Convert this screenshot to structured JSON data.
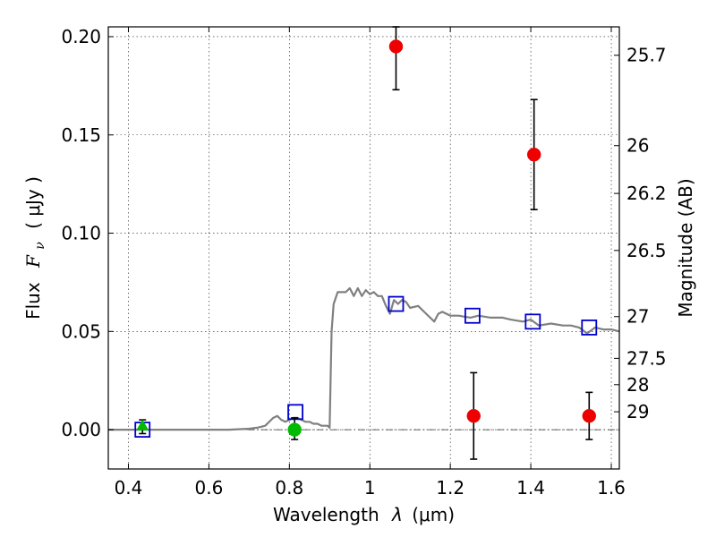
{
  "chart_data": {
    "type": "scatter",
    "title": "",
    "xlabel_prefix": "Wavelength",
    "xlabel_symbol": "λ",
    "xlabel_unit": "(μm)",
    "ylabel_prefix": "Flux",
    "ylabel_symbol": "F",
    "ylabel_subscript": "ν",
    "ylabel_unit": "( μJy )",
    "y2label": "Magnitude (AB)",
    "xlim": [
      0.35,
      1.62
    ],
    "ylim": [
      -0.02,
      0.205
    ],
    "grid": true,
    "x_ticks": [
      0.4,
      0.6,
      0.8,
      1.0,
      1.2,
      1.4,
      1.6
    ],
    "x_tick_labels": [
      "0.4",
      "0.6",
      "0.8",
      "1",
      "1.2",
      "1.4",
      "1.6"
    ],
    "y_ticks": [
      0.0,
      0.05,
      0.1,
      0.15,
      0.2
    ],
    "y_tick_labels": [
      "0.00",
      "0.05",
      "0.10",
      "0.15",
      "0.20"
    ],
    "y2_ticks": [
      25.7,
      26,
      26.2,
      26.5,
      27,
      27.5,
      28,
      29
    ],
    "y2_tick_labels": [
      "25.7",
      "26",
      "26.2",
      "26.5",
      "27",
      "27.5",
      "28",
      "29"
    ],
    "series": [
      {
        "kind": "line",
        "color": "#808080",
        "x": [
          0.35,
          0.4,
          0.45,
          0.5,
          0.55,
          0.6,
          0.65,
          0.7,
          0.72,
          0.74,
          0.76,
          0.77,
          0.78,
          0.79,
          0.8,
          0.81,
          0.82,
          0.83,
          0.84,
          0.85,
          0.86,
          0.87,
          0.88,
          0.89,
          0.895,
          0.9,
          0.905,
          0.91,
          0.92,
          0.93,
          0.94,
          0.95,
          0.96,
          0.97,
          0.98,
          0.99,
          1.0,
          1.01,
          1.02,
          1.03,
          1.04,
          1.05,
          1.06,
          1.07,
          1.08,
          1.09,
          1.1,
          1.12,
          1.14,
          1.16,
          1.17,
          1.18,
          1.2,
          1.22,
          1.25,
          1.27,
          1.3,
          1.33,
          1.35,
          1.38,
          1.4,
          1.42,
          1.45,
          1.48,
          1.5,
          1.52,
          1.54,
          1.56,
          1.58,
          1.6,
          1.62
        ],
        "y": [
          0.0,
          0.0,
          0.0,
          0.0,
          0.0,
          0.0,
          0.0,
          0.0005,
          0.001,
          0.002,
          0.006,
          0.007,
          0.005,
          0.004,
          0.005,
          0.006,
          0.006,
          0.005,
          0.004,
          0.004,
          0.003,
          0.003,
          0.002,
          0.002,
          0.002,
          0.001,
          0.05,
          0.064,
          0.07,
          0.07,
          0.07,
          0.072,
          0.068,
          0.072,
          0.068,
          0.071,
          0.069,
          0.07,
          0.068,
          0.068,
          0.063,
          0.059,
          0.066,
          0.064,
          0.066,
          0.065,
          0.062,
          0.063,
          0.059,
          0.055,
          0.059,
          0.06,
          0.058,
          0.058,
          0.057,
          0.058,
          0.057,
          0.057,
          0.056,
          0.055,
          0.056,
          0.053,
          0.054,
          0.053,
          0.053,
          0.052,
          0.049,
          0.052,
          0.051,
          0.051,
          0.05
        ]
      },
      {
        "kind": "squares",
        "color": "#0000cc",
        "x": [
          0.435,
          0.815,
          1.065,
          1.255,
          1.405,
          1.545
        ],
        "y": [
          0.0,
          0.009,
          0.064,
          0.058,
          0.055,
          0.052
        ]
      },
      {
        "kind": "points",
        "color": "#ee0000",
        "x": [
          1.065,
          1.258,
          1.408,
          1.545
        ],
        "y": [
          0.195,
          0.007,
          0.14,
          0.007
        ],
        "err_low": [
          0.173,
          -0.015,
          0.112,
          -0.005
        ],
        "err_high": [
          0.205,
          0.029,
          0.168,
          0.019
        ]
      },
      {
        "kind": "points",
        "color": "#00bb00",
        "x": [
          0.813
        ],
        "y": [
          0.0
        ],
        "err_low": [
          -0.005
        ],
        "err_high": [
          0.006
        ]
      },
      {
        "kind": "triangles",
        "color": "#00bb00",
        "x": [
          0.435
        ],
        "y": [
          0.002
        ],
        "err_low": [
          -0.002
        ],
        "err_high": [
          0.005
        ]
      }
    ]
  }
}
